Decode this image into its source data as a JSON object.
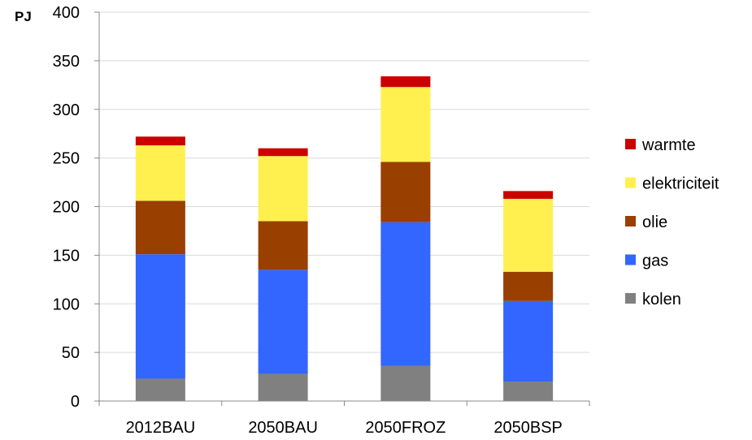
{
  "chart_data": {
    "type": "bar",
    "stacked": true,
    "ylabel": "PJ",
    "ylim": [
      0,
      400
    ],
    "yticks": [
      0,
      50,
      100,
      150,
      200,
      250,
      300,
      350,
      400
    ],
    "grid": true,
    "legend_position": "right",
    "categories": [
      "2012BAU",
      "2050BAU",
      "2050FROZ",
      "2050BSP"
    ],
    "series": [
      {
        "name": "kolen",
        "color": "#808080",
        "values": [
          23,
          28,
          36,
          20
        ]
      },
      {
        "name": "gas",
        "color": "#3366FF",
        "values": [
          128,
          107,
          148,
          83
        ]
      },
      {
        "name": "olie",
        "color": "#993F00",
        "values": [
          55,
          50,
          62,
          30
        ]
      },
      {
        "name": "elektriciteit",
        "color": "#FFF04F",
        "values": [
          57,
          67,
          77,
          75
        ]
      },
      {
        "name": "warmte",
        "color": "#CC0000",
        "values": [
          9,
          8,
          11,
          8
        ]
      }
    ],
    "legend_order": [
      "warmte",
      "elektriciteit",
      "olie",
      "gas",
      "kolen"
    ]
  }
}
